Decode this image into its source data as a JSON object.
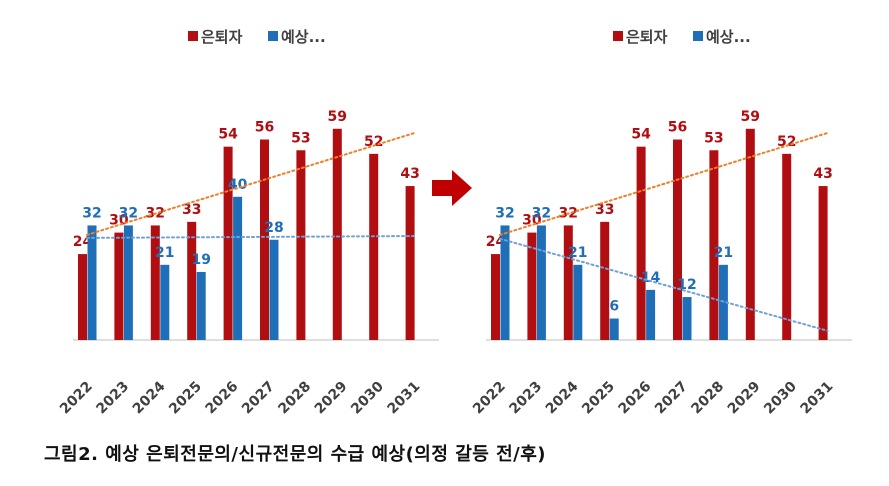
{
  "caption": "그림2.  예상 은퇴전문의/신규전문의 수급 예상(의정 갈등 전/후)",
  "colors": {
    "retire": "#b10e12",
    "expect": "#1f6fb8",
    "trend_retire": "#f07f2a",
    "trend_expect": "#6fa0d8",
    "arrow": "#c00000"
  },
  "chart_data": [
    {
      "type": "bar",
      "categories": [
        "2022",
        "2023",
        "2024",
        "2025",
        "2026",
        "2027",
        "2028",
        "2029",
        "2030",
        "2031"
      ],
      "series": [
        {
          "name": "은퇴자",
          "values": [
            24,
            30,
            32,
            33,
            54,
            56,
            53,
            59,
            52,
            43
          ]
        },
        {
          "name": "예상...",
          "values": [
            32,
            32,
            21,
            19,
            40,
            28,
            null,
            null,
            null,
            null
          ]
        }
      ],
      "legend": "top",
      "trendlines": "linear, dotted",
      "grid": false
    },
    {
      "type": "bar",
      "categories": [
        "2022",
        "2023",
        "2024",
        "2025",
        "2026",
        "2027",
        "2028",
        "2029",
        "2030",
        "2031"
      ],
      "series": [
        {
          "name": "은퇴자",
          "values": [
            24,
            30,
            32,
            33,
            54,
            56,
            53,
            59,
            52,
            43
          ]
        },
        {
          "name": "예상...",
          "values": [
            32,
            32,
            21,
            6,
            14,
            12,
            21,
            null,
            null,
            null
          ]
        }
      ],
      "legend": "top",
      "trendlines": "linear, dotted",
      "grid": false
    }
  ]
}
